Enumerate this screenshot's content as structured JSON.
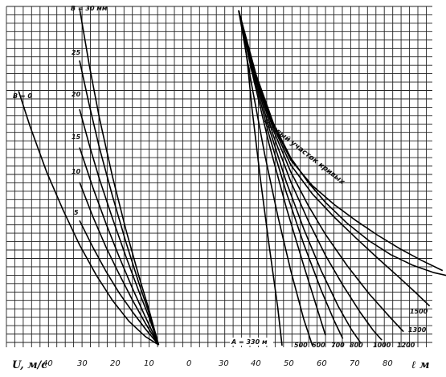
{
  "chart_data": {
    "type": "line",
    "grid": true,
    "x_axis": {
      "left_label": "U, м/с",
      "right_label": "ℓ м",
      "left_ticks": [
        "40",
        "30",
        "20",
        "10"
      ],
      "right_ticks": [
        "0",
        "30",
        "40",
        "50",
        "60",
        "70",
        "80"
      ]
    },
    "left_panel": {
      "description_labels": {
        "top": "B = 30 мм",
        "left": "B = 0"
      },
      "series": [
        {
          "name": "B = 0",
          "label": "B = 0",
          "x": [
            48.5,
            45,
            40,
            35,
            30,
            25,
            20,
            15,
            10,
            6
          ],
          "y": [
            36.6,
            31.5,
            25,
            19.5,
            14.5,
            10.2,
            6.5,
            3.5,
            1.3,
            0.1
          ]
        },
        {
          "name": "5",
          "label": "5",
          "x": [
            30,
            26,
            22,
            18,
            14,
            10,
            6
          ],
          "y": [
            18,
            14.2,
            10.7,
            7.6,
            4.9,
            2.4,
            0.1
          ]
        },
        {
          "name": "10",
          "label": "10",
          "x": [
            30,
            26,
            22,
            18,
            14,
            10,
            6
          ],
          "y": [
            23.5,
            18.6,
            14.2,
            10.3,
            6.6,
            3.2,
            0.1
          ]
        },
        {
          "name": "15",
          "label": "15",
          "x": [
            30,
            26,
            22,
            18,
            14,
            10,
            6
          ],
          "y": [
            28.5,
            22.8,
            17.6,
            12.8,
            8.3,
            4.1,
            0.1
          ]
        },
        {
          "name": "20",
          "label": "20",
          "x": [
            30,
            27,
            24,
            20,
            16,
            12,
            9,
            6
          ],
          "y": [
            34,
            28.8,
            24,
            18.3,
            12.9,
            7.8,
            4.2,
            0.1
          ]
        },
        {
          "name": "25",
          "label": "25",
          "x": [
            30,
            27,
            24,
            20,
            16,
            12,
            9,
            6
          ],
          "y": [
            41,
            34.5,
            28.5,
            21.5,
            15,
            9,
            4.8,
            0.1
          ]
        },
        {
          "name": "B = 30 мм",
          "label": "B = 30 мм",
          "x": [
            30,
            27,
            24,
            20,
            16,
            12,
            9,
            6
          ],
          "y": [
            48.5,
            40.2,
            32.8,
            24.3,
            16.8,
            10,
            5.3,
            0.1
          ]
        }
      ]
    },
    "right_panel": {
      "boundary_label": "Правый участок кривых",
      "series": [
        {
          "name": "A = 330 м",
          "label": "A = 330 м",
          "x": [
            35,
            36,
            37,
            38,
            40,
            42,
            44,
            45
          ],
          "y": [
            48.2,
            45.3,
            40.8,
            34.5,
            24,
            14.5,
            5.5,
            0
          ]
        },
        {
          "name": "500",
          "label": "500",
          "x": [
            35,
            38,
            41,
            44,
            47,
            50,
            52
          ],
          "y": [
            48.2,
            37.5,
            27.5,
            18.7,
            10.8,
            3.8,
            0
          ]
        },
        {
          "name": "600",
          "label": "600",
          "x": [
            35,
            38,
            42,
            46,
            50,
            53,
            55
          ],
          "y": [
            48.2,
            39.5,
            29,
            19.8,
            11.5,
            5.5,
            1.5
          ]
        },
        {
          "name": "700",
          "label": "700",
          "x": [
            35,
            38,
            42,
            46,
            50,
            54,
            57,
            59
          ],
          "y": [
            48.2,
            40,
            30.3,
            22,
            14.6,
            8,
            3.6,
            1
          ]
        },
        {
          "name": "800",
          "label": "800",
          "x": [
            35,
            38,
            42,
            46,
            50,
            54,
            58,
            61,
            63
          ],
          "y": [
            48.2,
            40.5,
            31.3,
            23.5,
            16.8,
            10.8,
            5.6,
            2.3,
            0.5
          ]
        },
        {
          "name": "1000",
          "label": "1000",
          "x": [
            35,
            39,
            43,
            47,
            51,
            55,
            59,
            63,
            66,
            68
          ],
          "y": [
            48.2,
            38.5,
            30.2,
            23.6,
            18,
            13,
            8.7,
            4.8,
            2.2,
            0.8
          ]
        },
        {
          "name": "1200",
          "label": "1200",
          "x": [
            35,
            39,
            43,
            47,
            51,
            55,
            60,
            65,
            70,
            73
          ],
          "y": [
            48.2,
            38.7,
            31,
            25,
            20.2,
            16,
            11.5,
            7.5,
            4,
            2
          ]
        },
        {
          "name": "1300",
          "label": "1300",
          "x": [
            35,
            39,
            43,
            47,
            52,
            57,
            62,
            67,
            72,
            76,
            79
          ],
          "y": [
            48.2,
            38.8,
            31.5,
            26,
            21.8,
            18.5,
            15.5,
            12.6,
            9.8,
            7.5,
            5.7
          ]
        },
        {
          "name": "1500",
          "label": "1500",
          "x": [
            35,
            39,
            43,
            47,
            52,
            57,
            62,
            67,
            72,
            77,
            82
          ],
          "y": [
            48.2,
            38.9,
            31.8,
            26.7,
            23,
            20.3,
            18,
            15.9,
            14,
            12.3,
            10.8
          ]
        },
        {
          "name": "Правый участок кривых",
          "label": "",
          "x": [
            35,
            39,
            43,
            47,
            51,
            55,
            60,
            65,
            70,
            75,
            80,
            85
          ],
          "y": [
            48.2,
            39,
            32,
            27,
            23.5,
            20.6,
            17.6,
            15.1,
            13.1,
            11.6,
            10.5,
            9.8
          ]
        }
      ]
    }
  }
}
